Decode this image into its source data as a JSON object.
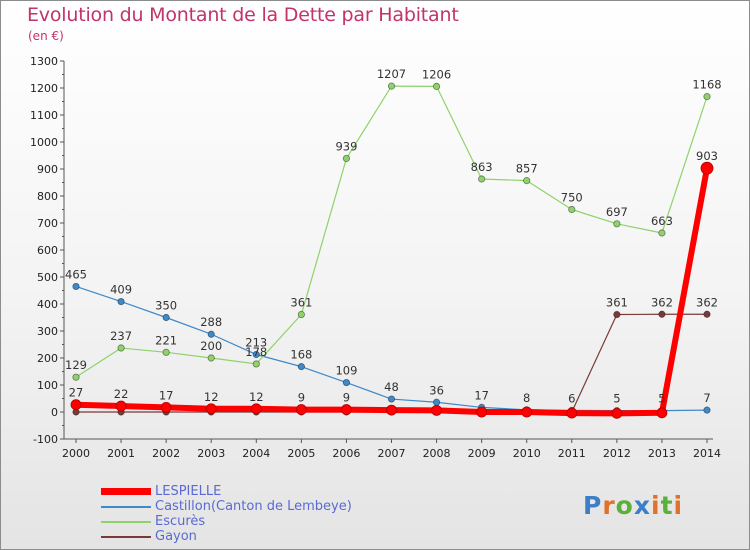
{
  "title": "Evolution du Montant de la Dette par Habitant",
  "subtitle": "(en €)",
  "logo": {
    "text": "Proxiti",
    "colors": [
      "#3a7fc8",
      "#e3702a",
      "#5bb03a",
      "#3a7fc8",
      "#e3702a",
      "#5bb03a",
      "#e3702a"
    ]
  },
  "chart_data": {
    "type": "line",
    "title": "Evolution du Montant de la Dette par Habitant",
    "subtitle": "(en €)",
    "x": [
      "2000",
      "2001",
      "2002",
      "2003",
      "2004",
      "2005",
      "2006",
      "2007",
      "2008",
      "2009",
      "2010",
      "2011",
      "2012",
      "2013",
      "2014"
    ],
    "ylim": [
      -100,
      1300
    ],
    "yticks": [
      -100,
      0,
      100,
      200,
      300,
      400,
      500,
      600,
      700,
      800,
      900,
      1000,
      1100,
      1200,
      1300
    ],
    "grid": false,
    "legend_position": "bottom-left",
    "series": [
      {
        "name": "LESPIELLE",
        "color": "#ff0000",
        "values": [
          27,
          22,
          17,
          12,
          12,
          9,
          9,
          7,
          6,
          0,
          0,
          -4,
          -5,
          -3,
          903
        ],
        "labels": [
          "27",
          "22",
          "17",
          "12",
          "12",
          "9",
          "9",
          "",
          "",
          "",
          "",
          "",
          "",
          "",
          "903"
        ]
      },
      {
        "name": "Castillon(Canton de Lembeye)",
        "color": "#3d89c9",
        "values": [
          465,
          409,
          350,
          288,
          213,
          168,
          109,
          48,
          36,
          17,
          8,
          6,
          5,
          5,
          7
        ],
        "labels": [
          "465",
          "409",
          "350",
          "288",
          "213",
          "168",
          "109",
          "48",
          "36",
          "17",
          "8",
          "6",
          "5",
          "5",
          "7"
        ]
      },
      {
        "name": "Escurès",
        "color": "#8fd26b",
        "values": [
          129,
          237,
          221,
          200,
          178,
          361,
          939,
          1207,
          1206,
          863,
          857,
          750,
          697,
          663,
          1168
        ],
        "labels": [
          "129",
          "237",
          "221",
          "200",
          "178",
          "361",
          "939",
          "1207",
          "1206",
          "863",
          "857",
          "750",
          "697",
          "663",
          "1168"
        ]
      },
      {
        "name": "Gayon",
        "color": "#7a3a3a",
        "values": [
          0,
          0,
          0,
          0,
          0,
          0,
          0,
          0,
          0,
          0,
          0,
          0,
          361,
          362,
          362
        ],
        "labels": [
          "",
          "",
          "",
          "",
          "",
          "",
          "",
          "",
          "",
          "",
          "",
          "",
          "361",
          "362",
          "362"
        ]
      }
    ]
  }
}
